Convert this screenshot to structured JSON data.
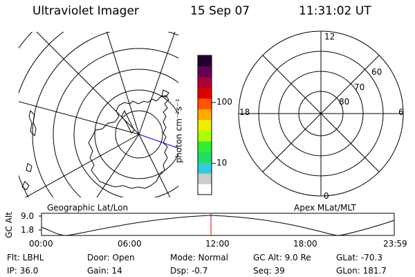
{
  "header": {
    "instrument": "Ultraviolet Imager",
    "date": "15 Sep 07",
    "time": "11:31:02 UT"
  },
  "colorbar": {
    "unit_label": "photon cm⁻²s⁻¹",
    "tick_100": "100",
    "tick_10": "10",
    "colors": [
      "#ffffff",
      "#cccccc",
      "#33ccdd",
      "#22dd66",
      "#33ee33",
      "#aaff00",
      "#eeee00",
      "#ffaa00",
      "#ff5500",
      "#dd0000",
      "#aa0033",
      "#660055",
      "#220033"
    ]
  },
  "left_map": {
    "caption": "Geographic Lat/Lon"
  },
  "right_map": {
    "caption": "Apex MLat/MLT",
    "mlt_labels": {
      "top": "12",
      "left": "18",
      "right": "6",
      "bottom": "0"
    },
    "mlat_labels": {
      "m60": "60",
      "m70": "70",
      "m80": "80"
    }
  },
  "orbit": {
    "axis_label": "GC Alt",
    "y_top": "9.0",
    "y_bottom": "1.8",
    "x_ticks": [
      "00:00",
      "06:00",
      "12:00",
      "18:00",
      "23:59"
    ]
  },
  "info": {
    "flt": "Flt: LBHL",
    "ip": "IP: 36.0",
    "door": "Door: Open",
    "gain": "Gain: 14",
    "mode": "Mode: Normal",
    "dsp": "Dsp:   -0.7",
    "gcalt": "GC Alt: 9.0 Re",
    "seq": "Seq: 39",
    "glat": "GLat: -70.3",
    "glon": "GLon: 181.7"
  }
}
